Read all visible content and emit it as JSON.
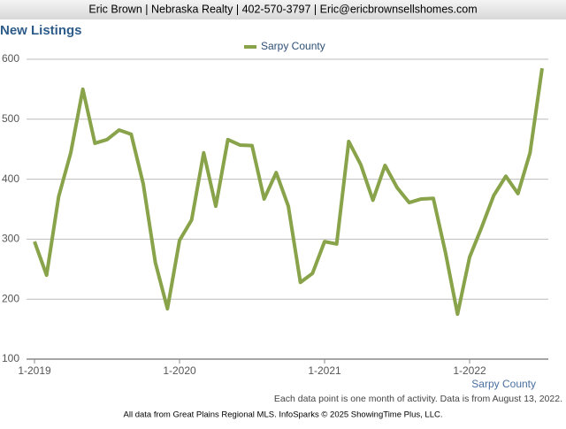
{
  "header": "Eric Brown | Nebraska Realty | 402-570-3797 | Eric@ericbrownsellshomes.com",
  "chart_data": {
    "type": "line",
    "title": "New Listings",
    "categories": [
      "1-2019",
      null,
      null,
      null,
      null,
      null,
      null,
      null,
      null,
      null,
      null,
      null,
      "1-2020",
      null,
      null,
      null,
      null,
      null,
      null,
      null,
      null,
      null,
      null,
      null,
      "1-2021",
      null,
      null,
      null,
      null,
      null,
      null,
      null,
      null,
      null,
      null,
      null,
      "1-2022",
      null,
      null,
      null,
      null,
      null,
      null
    ],
    "series": [
      {
        "name": "Sarpy County",
        "color": "#88a34a",
        "values": [
          296,
          240,
          371,
          444,
          550,
          460,
          466,
          482,
          475,
          392,
          261,
          184,
          298,
          332,
          444,
          355,
          466,
          457,
          456,
          367,
          411,
          355,
          228,
          243,
          296,
          292,
          463,
          424,
          365,
          423,
          386,
          361,
          367,
          368,
          278,
          175,
          270,
          320,
          373,
          405,
          376,
          444,
          585
        ]
      }
    ],
    "ylim": [
      100,
      600
    ],
    "yticks": [
      100,
      200,
      300,
      400,
      500,
      600
    ],
    "grid": true,
    "legend": "top",
    "area_label": "Sarpy County",
    "note": "Each data point is one month of activity. Data is from August 13, 2022.",
    "source": "All data from Great Plains Regional MLS. InfoSparks © 2025 ShowingTime Plus, LLC."
  }
}
